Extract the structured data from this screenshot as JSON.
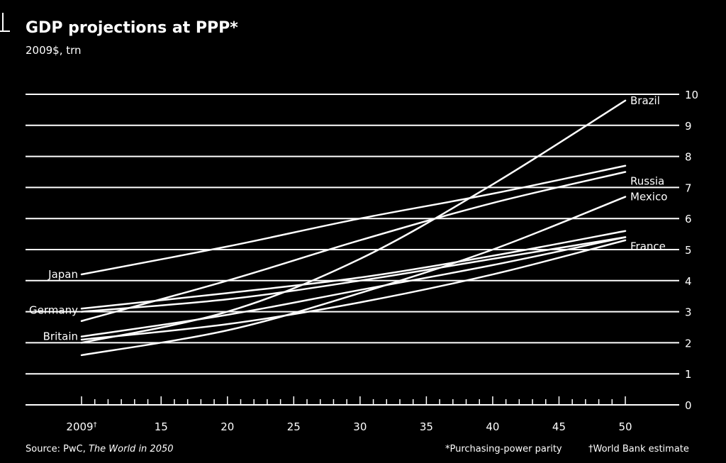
{
  "chart_data": {
    "type": "line",
    "title": "GDP projections at PPP*",
    "subtitle": "2009$, trn",
    "xlabel": "",
    "ylabel": "",
    "x_range": [
      2009,
      2050
    ],
    "ylim": [
      0,
      10
    ],
    "y_ticks": [
      "0",
      "1",
      "2",
      "3",
      "4",
      "5",
      "6",
      "7",
      "8",
      "9",
      "10"
    ],
    "x_ticks": [
      {
        "value": 2009,
        "label": "2009",
        "mark": "†"
      },
      {
        "value": 2015,
        "label": "15"
      },
      {
        "value": 2020,
        "label": "20"
      },
      {
        "value": 2025,
        "label": "25"
      },
      {
        "value": 2030,
        "label": "30"
      },
      {
        "value": 2035,
        "label": "35"
      },
      {
        "value": 2040,
        "label": "40"
      },
      {
        "value": 2045,
        "label": "45"
      },
      {
        "value": 2050,
        "label": "50"
      }
    ],
    "grid": true,
    "series": [
      {
        "name": "Japan",
        "x": [
          2009,
          2020,
          2030,
          2040,
          2050
        ],
        "values": [
          4.2,
          5.1,
          6.0,
          6.8,
          7.7
        ]
      },
      {
        "name": "Russia",
        "x": [
          2009,
          2020,
          2030,
          2040,
          2050
        ],
        "values": [
          2.7,
          4.0,
          5.3,
          6.5,
          7.5
        ]
      },
      {
        "x": [
          2009,
          2020,
          2030,
          2040,
          2050
        ],
        "values": [
          3.1,
          3.6,
          4.1,
          4.8,
          5.6
        ]
      },
      {
        "name": "Germany",
        "x": [
          2009,
          2020,
          2030,
          2040,
          2050
        ],
        "values": [
          3.0,
          3.4,
          4.0,
          4.7,
          5.4
        ]
      },
      {
        "name": "Brazil",
        "x": [
          2009,
          2020,
          2030,
          2040,
          2050
        ],
        "values": [
          2.0,
          3.0,
          4.7,
          7.1,
          9.8
        ]
      },
      {
        "name": "Mexico",
        "x": [
          2009,
          2020,
          2030,
          2040,
          2050
        ],
        "values": [
          1.6,
          2.4,
          3.6,
          5.0,
          6.7
        ]
      },
      {
        "name": "Britain",
        "x": [
          2009,
          2020,
          2030,
          2040,
          2050
        ],
        "values": [
          2.2,
          2.9,
          3.7,
          4.5,
          5.4
        ]
      },
      {
        "name": "France",
        "x": [
          2009,
          2020,
          2030,
          2040,
          2050
        ],
        "values": [
          2.1,
          2.6,
          3.3,
          4.2,
          5.3
        ]
      }
    ],
    "right_labels": [
      {
        "name": "Brazil",
        "value": 9.8
      },
      {
        "name": "Russia",
        "value": 7.2
      },
      {
        "name": "Mexico",
        "value": 6.7
      },
      {
        "name": "France",
        "value": 5.1
      }
    ],
    "left_labels": [
      {
        "name": "Japan",
        "value": 4.2
      },
      {
        "name": "Germany",
        "value": 3.05
      },
      {
        "name": "Britain",
        "value": 2.2
      }
    ]
  },
  "footer": {
    "source_prefix": "Source: PwC, ",
    "source_title": "The World in 2050",
    "note_ppp": "*Purchasing-power parity",
    "note_wb": "†World Bank estimate"
  },
  "colors": {
    "background": "#000000",
    "foreground": "#ffffff"
  }
}
